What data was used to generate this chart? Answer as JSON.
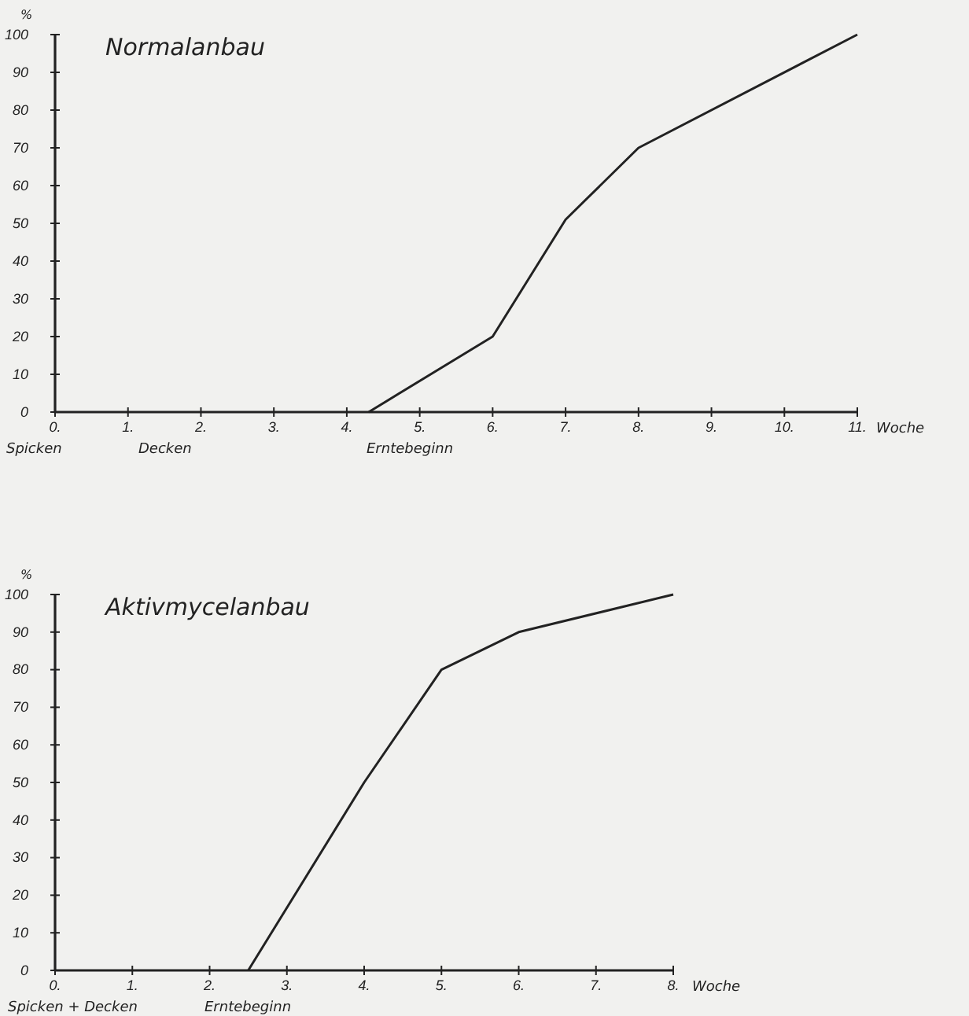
{
  "chart_data": [
    {
      "type": "line",
      "title": "Normalanbau",
      "ylabel": "%",
      "xlabel": "Woche",
      "xlim": [
        0,
        11
      ],
      "ylim": [
        0,
        100
      ],
      "xticks": [
        {
          "value": 0,
          "label": "0."
        },
        {
          "value": 1,
          "label": "1."
        },
        {
          "value": 2,
          "label": "2."
        },
        {
          "value": 3,
          "label": "3."
        },
        {
          "value": 4,
          "label": "4."
        },
        {
          "value": 5,
          "label": "5."
        },
        {
          "value": 6,
          "label": "6."
        },
        {
          "value": 7,
          "label": "7."
        },
        {
          "value": 8,
          "label": "8."
        },
        {
          "value": 9,
          "label": "9."
        },
        {
          "value": 10,
          "label": "10."
        },
        {
          "value": 11,
          "label": "11."
        }
      ],
      "yticks": [
        0,
        10,
        20,
        30,
        40,
        50,
        60,
        70,
        80,
        90,
        100
      ],
      "series": [
        {
          "color": "#222222",
          "x": [
            4.3,
            6,
            7,
            8,
            11
          ],
          "values": [
            0,
            20,
            51,
            70,
            100
          ]
        }
      ],
      "annotations": [
        "Spicken",
        "Decken",
        "Erntebeginn"
      ],
      "grid": false,
      "marker": "none",
      "line_style": "solid"
    },
    {
      "type": "line",
      "title": "Aktivmycelanbau",
      "ylabel": "%",
      "xlabel": "Woche",
      "xlim": [
        0,
        8
      ],
      "ylim": [
        0,
        100
      ],
      "xticks": [
        {
          "value": 0,
          "label": "0."
        },
        {
          "value": 1,
          "label": "1."
        },
        {
          "value": 2,
          "label": "2."
        },
        {
          "value": 3,
          "label": "3."
        },
        {
          "value": 4,
          "label": "4."
        },
        {
          "value": 5,
          "label": "5."
        },
        {
          "value": 6,
          "label": "6."
        },
        {
          "value": 7,
          "label": "7."
        },
        {
          "value": 8,
          "label": "8."
        }
      ],
      "yticks": [
        0,
        10,
        20,
        30,
        40,
        50,
        60,
        70,
        80,
        90,
        100
      ],
      "series": [
        {
          "color": "#222222",
          "x": [
            2.5,
            4,
            5,
            6,
            8
          ],
          "values": [
            0,
            50,
            80,
            90,
            100
          ]
        }
      ],
      "annotations": [
        "Spicken + Decken",
        "Erntebeginn"
      ],
      "grid": false,
      "marker": "none",
      "line_style": "solid"
    }
  ]
}
